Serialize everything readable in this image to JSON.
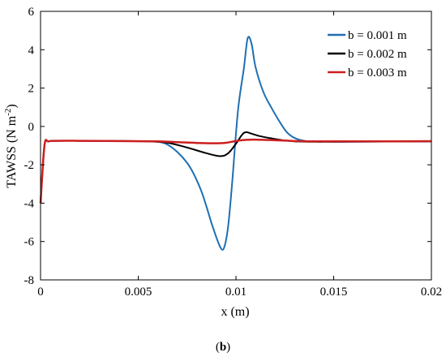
{
  "chart_data": {
    "type": "line",
    "xlabel": "x (m)",
    "ylabel_main": "TAWSS (N m",
    "ylabel_exp": "-2",
    "ylabel_close": ")",
    "xlim": [
      0,
      0.02
    ],
    "ylim": [
      -8,
      6
    ],
    "xticks": [
      0,
      0.005,
      0.01,
      0.015,
      0.02
    ],
    "xtick_labels": [
      "0",
      "0.005",
      "0.01",
      "0.015",
      "0.02"
    ],
    "yticks": [
      -8,
      -6,
      -4,
      -2,
      0,
      2,
      4,
      6
    ],
    "ytick_labels": [
      "-8",
      "-6",
      "-4",
      "-2",
      "0",
      "2",
      "4",
      "6"
    ],
    "grid": false,
    "legend_position": "top-right",
    "series": [
      {
        "name": "b = 0.001 m",
        "color": "#1f6fb2",
        "x": [
          0,
          0.0002,
          0.0004,
          0.0008,
          0.002,
          0.004,
          0.0055,
          0.0065,
          0.0075,
          0.0082,
          0.0088,
          0.0092,
          0.0094,
          0.0096,
          0.0098,
          0.0101,
          0.0104,
          0.0106,
          0.0108,
          0.011,
          0.0114,
          0.0118,
          0.0122,
          0.0126,
          0.013,
          0.0135,
          0.014,
          0.015,
          0.016,
          0.02
        ],
        "y": [
          -4.0,
          -1.0,
          -0.78,
          -0.75,
          -0.75,
          -0.76,
          -0.78,
          -0.95,
          -1.9,
          -3.3,
          -5.2,
          -6.3,
          -6.3,
          -5.2,
          -3.0,
          0.8,
          3.0,
          4.6,
          4.3,
          3.1,
          1.8,
          1.0,
          0.3,
          -0.3,
          -0.6,
          -0.75,
          -0.78,
          -0.8,
          -0.8,
          -0.78
        ]
      },
      {
        "name": "b = 0.002 m",
        "color": "#000000",
        "x": [
          0,
          0.0002,
          0.0004,
          0.0008,
          0.002,
          0.004,
          0.0055,
          0.0065,
          0.0075,
          0.0085,
          0.0092,
          0.0096,
          0.01,
          0.0103,
          0.0105,
          0.0108,
          0.0112,
          0.0118,
          0.0124,
          0.013,
          0.014,
          0.015,
          0.02
        ],
        "y": [
          -4.0,
          -1.0,
          -0.78,
          -0.75,
          -0.75,
          -0.76,
          -0.78,
          -0.85,
          -1.1,
          -1.4,
          -1.55,
          -1.4,
          -0.9,
          -0.45,
          -0.3,
          -0.38,
          -0.5,
          -0.62,
          -0.72,
          -0.78,
          -0.8,
          -0.8,
          -0.78
        ]
      },
      {
        "name": "b = 0.003 m",
        "color": "#cc1f1f",
        "x": [
          0,
          0.0002,
          0.0004,
          0.0008,
          0.002,
          0.004,
          0.006,
          0.007,
          0.008,
          0.009,
          0.0095,
          0.01,
          0.0105,
          0.011,
          0.012,
          0.013,
          0.014,
          0.016,
          0.02
        ],
        "y": [
          -4.0,
          -1.0,
          -0.78,
          -0.75,
          -0.75,
          -0.76,
          -0.78,
          -0.82,
          -0.86,
          -0.88,
          -0.85,
          -0.76,
          -0.7,
          -0.69,
          -0.72,
          -0.76,
          -0.78,
          -0.78,
          -0.77
        ]
      }
    ]
  },
  "caption": {
    "open": "(",
    "letter": "b",
    "close": ")"
  }
}
